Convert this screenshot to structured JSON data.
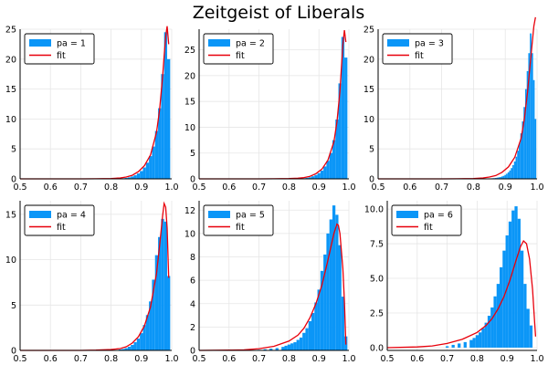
{
  "figure": {
    "title": "Zeitgeist of Liberals"
  },
  "colors": {
    "hist": "#0B96F7",
    "fit": "#E8000B",
    "grid": "#E6E6E6",
    "axis": "#000000"
  },
  "chart_data": [
    {
      "type": "histogram-with-line",
      "legend": [
        "pa = 1",
        "fit"
      ],
      "legend_position": "top-left",
      "grid": true,
      "xlim": [
        0.5,
        1.0
      ],
      "ylim": [
        0,
        25
      ],
      "xticks": [
        "0.5",
        "0.6",
        "0.7",
        "0.8",
        "0.9",
        "1.0"
      ],
      "yticks": [
        0,
        5,
        10,
        15,
        20,
        25
      ],
      "bin_width": 0.01,
      "hist": {
        "x": [
          0.83,
          0.84,
          0.85,
          0.86,
          0.87,
          0.88,
          0.89,
          0.9,
          0.91,
          0.92,
          0.93,
          0.94,
          0.95,
          0.96,
          0.97,
          0.98,
          0.99
        ],
        "y": [
          0.05,
          0.1,
          0.15,
          0.25,
          0.4,
          0.6,
          0.9,
          1.3,
          1.9,
          2.7,
          3.8,
          5.4,
          8.0,
          11.8,
          17.5,
          24.5,
          20.0
        ]
      },
      "fit": {
        "x": [
          0.5,
          0.6,
          0.7,
          0.75,
          0.8,
          0.83,
          0.85,
          0.87,
          0.89,
          0.91,
          0.93,
          0.95,
          0.96,
          0.97,
          0.975,
          0.98,
          0.985,
          0.99
        ],
        "y": [
          0,
          0,
          0,
          0.02,
          0.06,
          0.15,
          0.3,
          0.6,
          1.2,
          2.2,
          4.0,
          7.8,
          11.5,
          17.0,
          20.5,
          23.8,
          25.5,
          22.5
        ]
      }
    },
    {
      "type": "histogram-with-line",
      "legend": [
        "pa = 2",
        "fit"
      ],
      "legend_position": "top-left",
      "grid": true,
      "xlim": [
        0.5,
        1.0
      ],
      "ylim": [
        0,
        29
      ],
      "xticks": [
        "0.5",
        "0.6",
        "0.7",
        "0.8",
        "0.9",
        "1.0"
      ],
      "yticks": [
        0,
        5,
        10,
        15,
        20,
        25
      ],
      "bin_width": 0.01,
      "hist": {
        "x": [
          0.83,
          0.84,
          0.85,
          0.86,
          0.87,
          0.88,
          0.89,
          0.9,
          0.91,
          0.92,
          0.93,
          0.94,
          0.95,
          0.96,
          0.97,
          0.98,
          0.99
        ],
        "y": [
          0.05,
          0.08,
          0.12,
          0.2,
          0.3,
          0.5,
          0.75,
          1.1,
          1.6,
          2.4,
          3.5,
          5.0,
          7.5,
          11.5,
          18.5,
          27.5,
          23.5
        ]
      },
      "fit": {
        "x": [
          0.5,
          0.6,
          0.7,
          0.75,
          0.8,
          0.83,
          0.85,
          0.87,
          0.89,
          0.91,
          0.93,
          0.95,
          0.96,
          0.97,
          0.975,
          0.98,
          0.985,
          0.99
        ],
        "y": [
          0,
          0,
          0,
          0.02,
          0.05,
          0.12,
          0.25,
          0.5,
          1.0,
          1.9,
          3.6,
          7.2,
          11.0,
          17.0,
          21.5,
          26.0,
          28.8,
          26.5
        ]
      }
    },
    {
      "type": "histogram-with-line",
      "legend": [
        "pa = 3",
        "fit"
      ],
      "legend_position": "top-left",
      "grid": true,
      "xlim": [
        0.5,
        1.0
      ],
      "ylim": [
        0,
        25
      ],
      "xticks": [
        "0.5",
        "0.6",
        "0.7",
        "0.8",
        "0.9",
        "1.0"
      ],
      "yticks": [
        0,
        5,
        10,
        15,
        20,
        25
      ],
      "bin_width": 0.005,
      "hist": {
        "x": [
          0.86,
          0.865,
          0.87,
          0.875,
          0.88,
          0.885,
          0.89,
          0.895,
          0.9,
          0.905,
          0.91,
          0.915,
          0.92,
          0.925,
          0.93,
          0.935,
          0.94,
          0.945,
          0.95,
          0.955,
          0.96,
          0.965,
          0.97,
          0.975,
          0.98,
          0.985,
          0.99,
          0.995
        ],
        "y": [
          0.1,
          0.12,
          0.15,
          0.2,
          0.25,
          0.3,
          0.4,
          0.5,
          0.65,
          0.85,
          1.1,
          1.4,
          1.8,
          2.3,
          2.9,
          3.7,
          4.7,
          6.0,
          7.6,
          9.6,
          12.0,
          15.0,
          18.0,
          21.0,
          24.3,
          21.0,
          16.5,
          10.0
        ]
      },
      "fit": {
        "x": [
          0.5,
          0.6,
          0.7,
          0.75,
          0.8,
          0.83,
          0.85,
          0.87,
          0.89,
          0.91,
          0.93,
          0.95,
          0.96,
          0.97,
          0.98,
          0.99,
          0.995
        ],
        "y": [
          0,
          0,
          0,
          0.02,
          0.06,
          0.15,
          0.3,
          0.55,
          1.1,
          2.0,
          3.6,
          6.8,
          10.0,
          14.5,
          20.0,
          25.5,
          27.0
        ]
      }
    },
    {
      "type": "histogram-with-line",
      "legend": [
        "pa = 4",
        "fit"
      ],
      "legend_position": "top-left",
      "grid": true,
      "xlim": [
        0.5,
        1.0
      ],
      "ylim": [
        0,
        16.5
      ],
      "xticks": [
        "0.5",
        "0.6",
        "0.7",
        "0.8",
        "0.9",
        "1.0"
      ],
      "yticks": [
        0,
        5,
        10,
        15
      ],
      "bin_width": 0.01,
      "hist": {
        "x": [
          0.83,
          0.84,
          0.85,
          0.86,
          0.87,
          0.88,
          0.89,
          0.9,
          0.91,
          0.92,
          0.93,
          0.94,
          0.95,
          0.96,
          0.97,
          0.98,
          0.99
        ],
        "y": [
          0.1,
          0.15,
          0.25,
          0.4,
          0.6,
          0.9,
          1.3,
          1.9,
          2.8,
          3.9,
          5.4,
          7.8,
          10.5,
          12.5,
          14.5,
          14.2,
          8.2
        ]
      },
      "fit": {
        "x": [
          0.5,
          0.6,
          0.7,
          0.75,
          0.8,
          0.83,
          0.85,
          0.87,
          0.89,
          0.91,
          0.93,
          0.95,
          0.96,
          0.97,
          0.975,
          0.98,
          0.985,
          0.99
        ],
        "y": [
          0,
          0,
          0,
          0.03,
          0.1,
          0.2,
          0.4,
          0.8,
          1.5,
          2.7,
          4.8,
          8.5,
          11.5,
          14.8,
          16.2,
          15.8,
          13.5,
          8.0
        ]
      }
    },
    {
      "type": "histogram-with-line",
      "legend": [
        "pa = 5",
        "fit"
      ],
      "legend_position": "top-left",
      "grid": true,
      "xlim": [
        0.5,
        1.0
      ],
      "ylim": [
        0,
        12.8
      ],
      "xticks": [
        "0.5",
        "0.6",
        "0.7",
        "0.8",
        "0.9",
        "1.0"
      ],
      "yticks": [
        0,
        2,
        4,
        6,
        8,
        10,
        12
      ],
      "bin_width": 0.01,
      "hist": {
        "x": [
          0.7,
          0.72,
          0.74,
          0.76,
          0.78,
          0.79,
          0.8,
          0.81,
          0.82,
          0.83,
          0.84,
          0.85,
          0.86,
          0.87,
          0.88,
          0.89,
          0.9,
          0.91,
          0.92,
          0.93,
          0.94,
          0.95,
          0.96,
          0.97,
          0.98,
          0.99
        ],
        "y": [
          0.05,
          0.1,
          0.15,
          0.2,
          0.3,
          0.4,
          0.5,
          0.6,
          0.7,
          0.9,
          1.1,
          1.5,
          1.9,
          2.5,
          3.2,
          4.1,
          5.2,
          6.8,
          8.2,
          10.0,
          11.2,
          12.4,
          11.6,
          9.0,
          4.6,
          1.2
        ]
      },
      "fit": {
        "x": [
          0.5,
          0.6,
          0.65,
          0.7,
          0.75,
          0.8,
          0.83,
          0.85,
          0.87,
          0.89,
          0.91,
          0.93,
          0.95,
          0.96,
          0.965,
          0.97,
          0.98,
          0.985,
          0.99
        ],
        "y": [
          0,
          0.02,
          0.05,
          0.15,
          0.35,
          0.8,
          1.3,
          1.9,
          2.8,
          4.0,
          5.6,
          7.7,
          10.0,
          10.8,
          10.7,
          10.0,
          7.0,
          4.2,
          0.5
        ]
      }
    },
    {
      "type": "histogram-with-line",
      "legend": [
        "pa = 6",
        "fit"
      ],
      "legend_position": "top-left",
      "grid": true,
      "xlim": [
        0.5,
        1.0
      ],
      "ylim": [
        -0.2,
        10.6
      ],
      "xticks": [
        "0.5",
        "0.6",
        "0.7",
        "0.8",
        "0.9",
        "1.0"
      ],
      "yticks": [
        "0.0",
        "2.5",
        "5.0",
        "7.5",
        "10.0"
      ],
      "ytick_values": [
        0,
        2.5,
        5.0,
        7.5,
        10.0
      ],
      "bin_width": 0.01,
      "hist": {
        "x": [
          0.7,
          0.72,
          0.74,
          0.76,
          0.78,
          0.79,
          0.8,
          0.81,
          0.82,
          0.83,
          0.84,
          0.85,
          0.86,
          0.87,
          0.88,
          0.89,
          0.9,
          0.91,
          0.92,
          0.93,
          0.94,
          0.95,
          0.96,
          0.97,
          0.98
        ],
        "y": [
          0.1,
          0.2,
          0.3,
          0.4,
          0.55,
          0.7,
          0.9,
          1.1,
          1.4,
          1.8,
          2.3,
          2.9,
          3.7,
          4.6,
          5.8,
          7.0,
          8.1,
          9.1,
          9.9,
          10.2,
          9.3,
          7.0,
          4.6,
          2.8,
          1.6
        ]
      },
      "fit": {
        "x": [
          0.5,
          0.6,
          0.65,
          0.7,
          0.75,
          0.8,
          0.83,
          0.85,
          0.87,
          0.89,
          0.91,
          0.93,
          0.945,
          0.955,
          0.965,
          0.975,
          0.985,
          0.99,
          0.995
        ],
        "y": [
          0,
          0.05,
          0.12,
          0.3,
          0.6,
          1.1,
          1.6,
          2.1,
          2.8,
          3.7,
          4.9,
          6.3,
          7.3,
          7.7,
          7.5,
          6.4,
          4.2,
          2.5,
          0.8
        ]
      }
    }
  ]
}
